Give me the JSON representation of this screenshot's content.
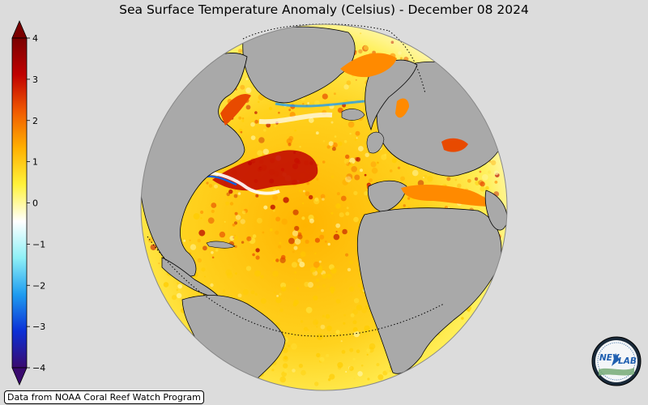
{
  "title": "Sea Surface Temperature Anomaly (Celsius) - December 08 2024",
  "colorbar": {
    "ticks": [
      "4",
      "3",
      "2",
      "1",
      "0",
      "−1",
      "−2",
      "−3",
      "−4"
    ],
    "stops": [
      "#3a0a6e",
      "#0b2fd6",
      "#1e9cf0",
      "#8ef0f6",
      "#ffffff",
      "#fff23a",
      "#ffb000",
      "#f05a00",
      "#c00000",
      "#7a0000"
    ]
  },
  "map": {
    "ocean_colors": [
      "#fff7a8",
      "#ffe23a",
      "#ffcc00",
      "#ffa800",
      "#ff8a00",
      "#e84a00",
      "#b80000"
    ],
    "land_color": "#a9a9a9"
  },
  "credit": "Data from NOAA Coral Reef Watch Program",
  "logo": {
    "text_a": "NEV",
    "text_b": "LAB"
  }
}
